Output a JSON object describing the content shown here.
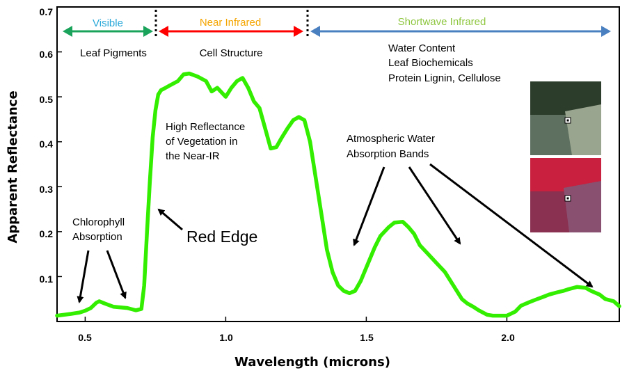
{
  "chart_data": {
    "type": "line",
    "xlabel": "Wavelength (microns)",
    "ylabel": "Apparent Reflectance",
    "xlim": [
      0.4,
      2.4
    ],
    "ylim": [
      0.0,
      0.7
    ],
    "x_ticks": [
      0.5,
      1.0,
      1.5,
      2.0
    ],
    "x_tick_labels": [
      "0.5",
      "1.0",
      "1.5",
      "2.0"
    ],
    "y_ticks": [
      0.1,
      0.2,
      0.3,
      0.4,
      0.5,
      0.6,
      0.7
    ],
    "y_tick_labels": [
      "0.1",
      "0.2",
      "0.3",
      "0.4",
      "0.5",
      "0.6",
      "0.7"
    ],
    "grid": false,
    "series": [
      {
        "color": "#33ee00",
        "x": [
          0.4,
          0.45,
          0.48,
          0.5,
          0.52,
          0.54,
          0.55,
          0.57,
          0.6,
          0.65,
          0.68,
          0.7,
          0.71,
          0.72,
          0.73,
          0.74,
          0.75,
          0.76,
          0.77,
          0.78,
          0.8,
          0.83,
          0.85,
          0.87,
          0.9,
          0.93,
          0.95,
          0.97,
          1.0,
          1.02,
          1.04,
          1.06,
          1.08,
          1.1,
          1.12,
          1.14,
          1.16,
          1.18,
          1.2,
          1.22,
          1.24,
          1.26,
          1.28,
          1.3,
          1.32,
          1.34,
          1.36,
          1.38,
          1.4,
          1.42,
          1.44,
          1.46,
          1.48,
          1.5,
          1.53,
          1.55,
          1.58,
          1.6,
          1.63,
          1.65,
          1.67,
          1.69,
          1.72,
          1.75,
          1.78,
          1.8,
          1.82,
          1.84,
          1.86,
          1.88,
          1.9,
          1.93,
          1.95,
          1.98,
          2.0,
          2.03,
          2.05,
          2.08,
          2.1,
          2.13,
          2.15,
          2.18,
          2.2,
          2.22,
          2.25,
          2.28,
          2.3,
          2.33,
          2.35,
          2.38,
          2.4
        ],
        "y": [
          0.013,
          0.017,
          0.02,
          0.024,
          0.03,
          0.042,
          0.045,
          0.04,
          0.033,
          0.03,
          0.025,
          0.028,
          0.08,
          0.2,
          0.31,
          0.41,
          0.47,
          0.505,
          0.515,
          0.518,
          0.525,
          0.535,
          0.55,
          0.552,
          0.545,
          0.535,
          0.512,
          0.52,
          0.5,
          0.52,
          0.535,
          0.542,
          0.52,
          0.49,
          0.475,
          0.43,
          0.385,
          0.388,
          0.41,
          0.43,
          0.448,
          0.455,
          0.448,
          0.4,
          0.32,
          0.24,
          0.16,
          0.11,
          0.08,
          0.068,
          0.063,
          0.068,
          0.09,
          0.12,
          0.165,
          0.19,
          0.21,
          0.22,
          0.222,
          0.21,
          0.195,
          0.17,
          0.15,
          0.13,
          0.11,
          0.09,
          0.07,
          0.05,
          0.04,
          0.033,
          0.025,
          0.015,
          0.013,
          0.013,
          0.013,
          0.022,
          0.035,
          0.043,
          0.048,
          0.055,
          0.06,
          0.065,
          0.068,
          0.072,
          0.077,
          0.075,
          0.068,
          0.06,
          0.05,
          0.045,
          0.034
        ]
      }
    ],
    "regions": [
      {
        "label": "Visible",
        "color": "#29a8d8"
      },
      {
        "label": "Near Infrared",
        "color": "#f5a500"
      },
      {
        "label": "Shortwave Infrared",
        "color": "#8ec63f"
      }
    ],
    "region_descriptions": [
      {
        "lines": [
          "Leaf Pigments"
        ]
      },
      {
        "lines": [
          "Cell Structure"
        ]
      },
      {
        "lines": [
          "Water Content",
          "Leaf Biochemicals"
        ],
        "colored_line": "Protein Lignin, Cellulose",
        "colored_line_color": "#16a34a"
      }
    ],
    "annotations": {
      "chlorophyll": [
        "Chlorophyll",
        "Absorption"
      ],
      "red_edge": "Red Edge",
      "high_reflectance": [
        "High Reflectance",
        "of Vegetation in",
        "the Near-IR"
      ],
      "water_bands": [
        "Atmospheric Water",
        "Absorption Bands"
      ]
    },
    "arrow_colors": {
      "visible": "#1aa35a",
      "nir": "#ff0000",
      "swir": "#4a80c0"
    }
  }
}
